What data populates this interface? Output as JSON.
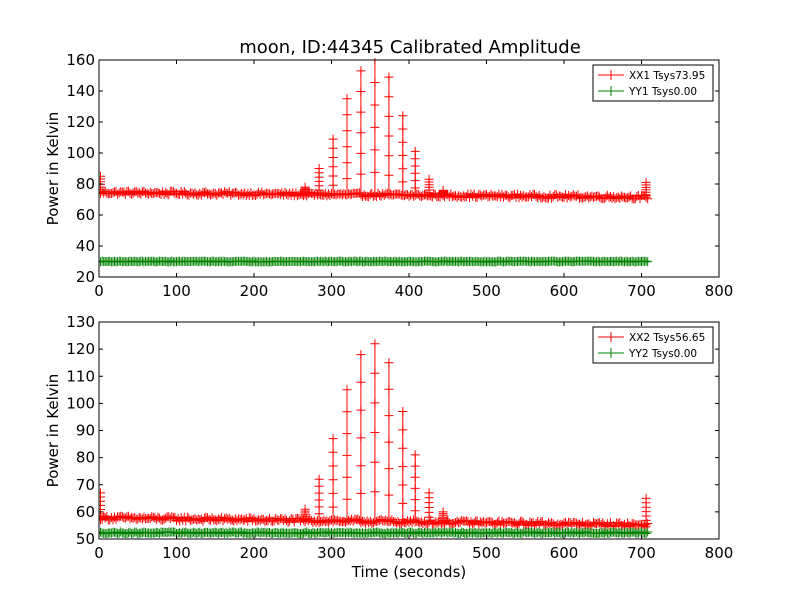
{
  "title": "moon, ID:44345 Calibrated Amplitude",
  "chart_data": [
    {
      "type": "line",
      "title": "moon, ID:44345 Calibrated Amplitude",
      "xlabel": "",
      "ylabel": "Power in Kelvin",
      "xlim": [
        0,
        800
      ],
      "ylim": [
        20,
        160
      ],
      "xticks": [
        "0",
        "100",
        "200",
        "300",
        "400",
        "500",
        "600",
        "700",
        "800"
      ],
      "yticks": [
        "20",
        "40",
        "60",
        "80",
        "100",
        "120",
        "140",
        "160"
      ],
      "legend_position": "top-right",
      "grid": false,
      "series": [
        {
          "name": "XX1 Tsys73.95",
          "color": "#ff0000",
          "baseline": {
            "x_start": 0,
            "x_end": 708,
            "y_start": 74.5,
            "y_end": 71.5,
            "noise": 1.2
          },
          "spikes": [
            {
              "x": 2,
              "y": 85
            },
            {
              "x": 265,
              "y": 78
            },
            {
              "x": 283,
              "y": 90
            },
            {
              "x": 301,
              "y": 109
            },
            {
              "x": 319,
              "y": 135
            },
            {
              "x": 337,
              "y": 153
            },
            {
              "x": 355,
              "y": 160
            },
            {
              "x": 373,
              "y": 149
            },
            {
              "x": 391,
              "y": 124
            },
            {
              "x": 408,
              "y": 101
            },
            {
              "x": 426,
              "y": 83
            },
            {
              "x": 444,
              "y": 76
            },
            {
              "x": 706,
              "y": 81
            }
          ]
        },
        {
          "name": "YY1 Tsys0.00",
          "color": "#008000",
          "baseline": {
            "x_start": 0,
            "x_end": 708,
            "y_start": 30,
            "y_end": 30,
            "noise": 0.3
          },
          "spikes": []
        }
      ]
    },
    {
      "type": "line",
      "title": "",
      "xlabel": "Time (seconds)",
      "ylabel": "Power in Kelvin",
      "xlim": [
        0,
        800
      ],
      "ylim": [
        50,
        130
      ],
      "xticks": [
        "0",
        "100",
        "200",
        "300",
        "400",
        "500",
        "600",
        "700",
        "800"
      ],
      "yticks": [
        "50",
        "60",
        "70",
        "80",
        "90",
        "100",
        "110",
        "120",
        "130"
      ],
      "legend_position": "top-right",
      "grid": false,
      "series": [
        {
          "name": "XX2 Tsys56.65",
          "color": "#ff0000",
          "baseline": {
            "x_start": 0,
            "x_end": 708,
            "y_start": 57.8,
            "y_end": 55.2,
            "noise": 0.8
          },
          "spikes": [
            {
              "x": 2,
              "y": 67
            },
            {
              "x": 265,
              "y": 61
            },
            {
              "x": 283,
              "y": 72
            },
            {
              "x": 301,
              "y": 87
            },
            {
              "x": 319,
              "y": 105
            },
            {
              "x": 337,
              "y": 118
            },
            {
              "x": 355,
              "y": 122
            },
            {
              "x": 373,
              "y": 115
            },
            {
              "x": 391,
              "y": 97
            },
            {
              "x": 408,
              "y": 81
            },
            {
              "x": 426,
              "y": 67
            },
            {
              "x": 444,
              "y": 60
            },
            {
              "x": 706,
              "y": 65
            }
          ]
        },
        {
          "name": "YY2 Tsys0.00",
          "color": "#008000",
          "baseline": {
            "x_start": 0,
            "x_end": 708,
            "y_start": 52.3,
            "y_end": 52.3,
            "noise": 0.3
          },
          "spikes": []
        }
      ]
    }
  ]
}
